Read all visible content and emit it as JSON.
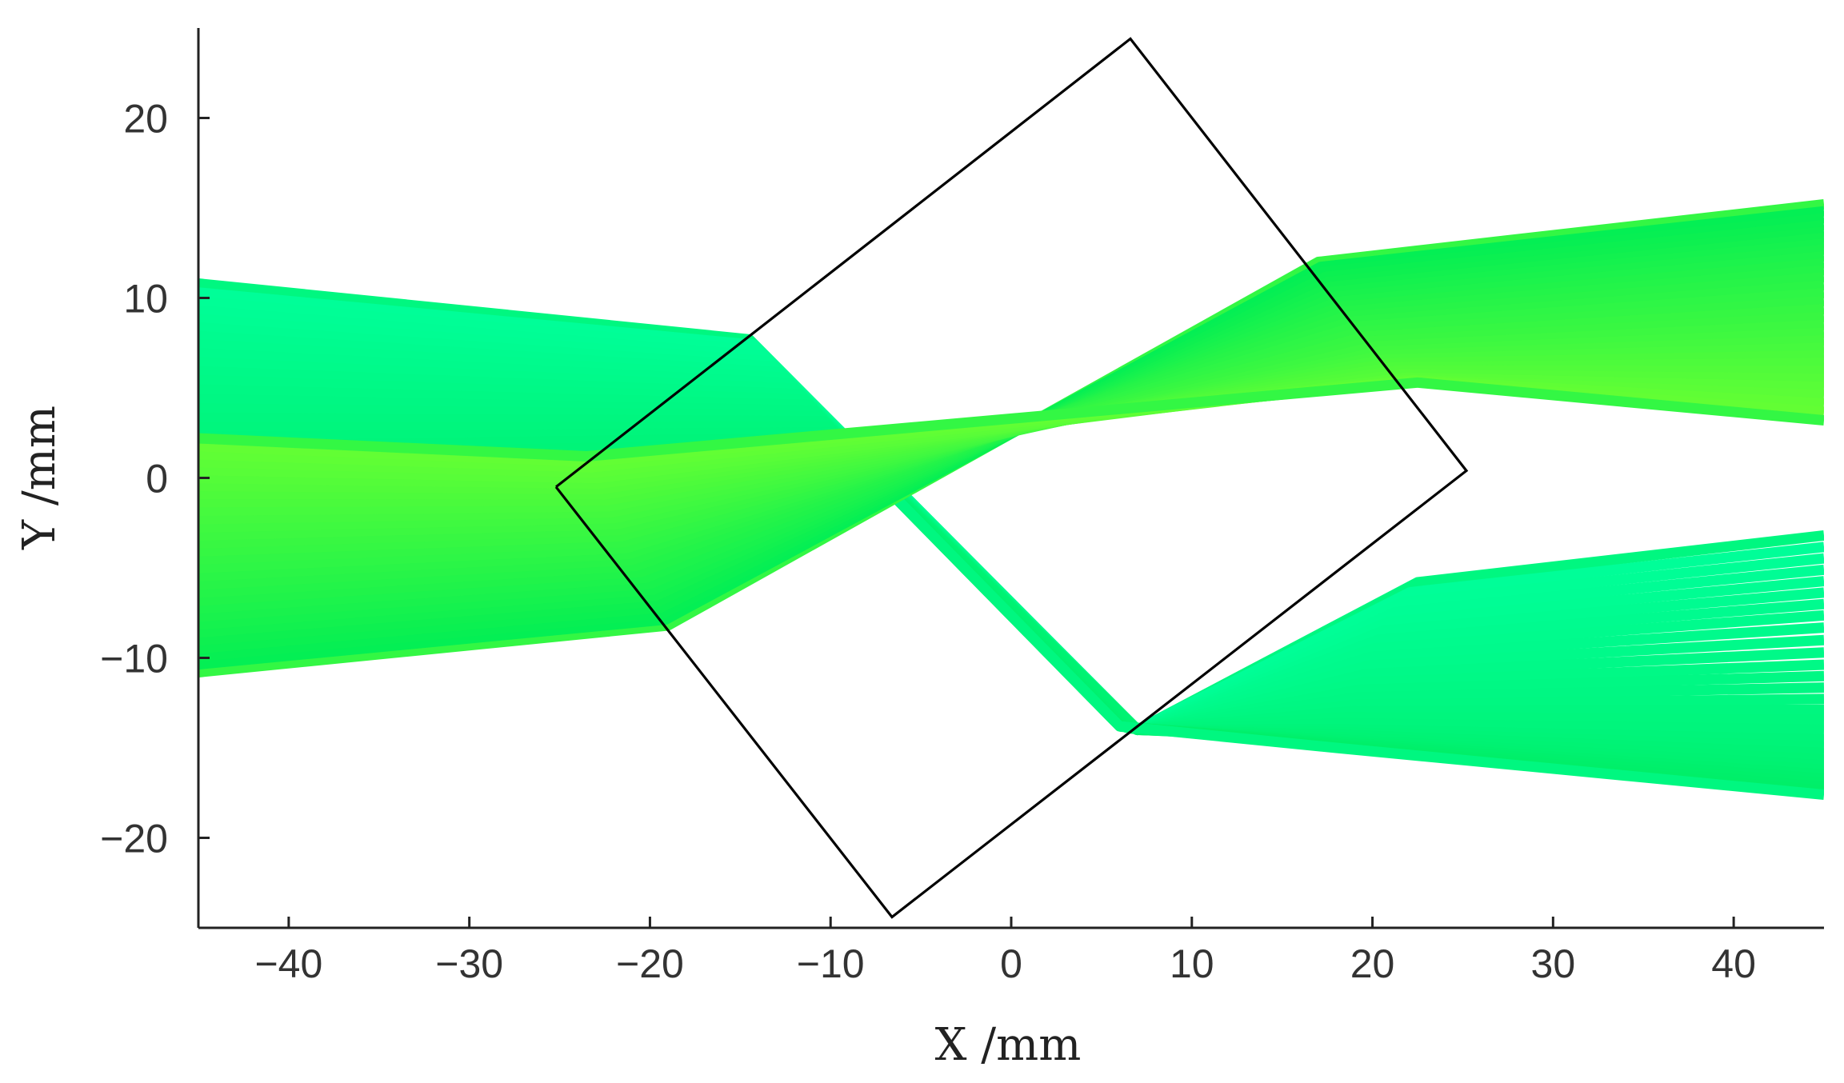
{
  "chart_data": {
    "type": "line",
    "title": "",
    "xlabel": "X /mm",
    "ylabel": "Y /mm",
    "xlim": [
      -45,
      45
    ],
    "ylim": [
      -25,
      25
    ],
    "xticks": [
      -40,
      -30,
      -20,
      -10,
      0,
      10,
      20,
      30,
      40
    ],
    "yticks": [
      -20,
      -10,
      0,
      10,
      20
    ],
    "xtick_labels": [
      "−40",
      "−30",
      "−20",
      "−10",
      "0",
      "10",
      "20",
      "30",
      "40"
    ],
    "ytick_labels": [
      "−20",
      "−10",
      "0",
      "10",
      "20"
    ],
    "grid": false,
    "legend": "none",
    "colors": {
      "bundle_a_outer": "#00ff9a",
      "bundle_a_inner": "#00ee66",
      "bundle_b_outer": "#66ff33",
      "bundle_b_inner": "#00ee55",
      "prism_outline": "#000000"
    },
    "series": [
      {
        "id": "prism",
        "kind": "outline",
        "x": [
          -25.2,
          6.6,
          25.2,
          -6.6,
          -25.2
        ],
        "y": [
          -0.5,
          24.4,
          0.4,
          -24.4,
          -0.5
        ]
      },
      {
        "id": "bundle_a",
        "kind": "ray_bundle",
        "segments": [
          {
            "x": [
              -45,
              -14.5,
              7,
              22.5,
              45
            ],
            "y": [
              10.8,
              7.7,
              -14.0,
              -5.8,
              -3.2
            ]
          },
          {
            "x": [
              -45,
              -13.5,
              7,
              21,
              45
            ],
            "y": [
              9.0,
              6.6,
              -14.0,
              -7.8,
              -5.5
            ]
          },
          {
            "x": [
              -45,
              -12.5,
              7,
              20,
              45
            ],
            "y": [
              7.3,
              5.5,
              -14.0,
              -9.6,
              -7.8
            ]
          },
          {
            "x": [
              -45,
              -11.5,
              7,
              19.5,
              45
            ],
            "y": [
              5.5,
              4.4,
              -14.0,
              -11.3,
              -10.3
            ]
          },
          {
            "x": [
              -45,
              -10.5,
              7,
              19,
              45
            ],
            "y": [
              3.6,
              3.3,
              -14.0,
              -12.8,
              -12.6
            ]
          },
          {
            "x": [
              -45,
              -9.5,
              7,
              18,
              45
            ],
            "y": [
              1.7,
              2.2,
              -14.0,
              -14.0,
              -14.6
            ]
          },
          {
            "x": [
              -45,
              -8.5,
              7,
              18,
              45
            ],
            "y": [
              -0.2,
              1.1,
              -14.0,
              -14.5,
              -15.9
            ]
          },
          {
            "x": [
              -45,
              -7.5,
              6,
              18,
              45
            ],
            "y": [
              -2.1,
              0.0,
              -13.8,
              -14.8,
              -16.8
            ]
          },
          {
            "x": [
              -45,
              -6.5,
              6,
              18,
              45
            ],
            "y": [
              -4.0,
              -1.0,
              -13.8,
              -15.0,
              -17.6
            ]
          }
        ]
      },
      {
        "id": "bundle_b",
        "kind": "ray_bundle",
        "segments": [
          {
            "x": [
              -45,
              -19,
              17,
              45
            ],
            "y": [
              -10.8,
              -8.2,
              12.0,
              15.2
            ]
          },
          {
            "x": [
              -45,
              -19.5,
              17.5,
              45
            ],
            "y": [
              -9.2,
              -7.0,
              11.0,
              13.8
            ]
          },
          {
            "x": [
              -45,
              -20,
              18,
              45
            ],
            "y": [
              -7.6,
              -5.8,
              10.0,
              12.6
            ]
          },
          {
            "x": [
              -45,
              -21,
              18.5,
              45
            ],
            "y": [
              -6.0,
              -4.6,
              9.0,
              11.2
            ]
          },
          {
            "x": [
              -45,
              -21.5,
              19.5,
              45
            ],
            "y": [
              -4.3,
              -3.4,
              8.0,
              9.6
            ]
          },
          {
            "x": [
              -45,
              -22,
              20.5,
              45
            ],
            "y": [
              -2.7,
              -2.2,
              7.0,
              8.0
            ]
          },
          {
            "x": [
              -45,
              -22.5,
              21,
              45
            ],
            "y": [
              -1.0,
              -1.0,
              6.2,
              6.5
            ]
          },
          {
            "x": [
              -45,
              -23,
              22,
              45
            ],
            "y": [
              0.6,
              0.1,
              5.5,
              4.9
            ]
          },
          {
            "x": [
              -45,
              -23.5,
              22.5,
              45
            ],
            "y": [
              2.2,
              1.2,
              5.3,
              3.2
            ]
          }
        ]
      }
    ]
  }
}
